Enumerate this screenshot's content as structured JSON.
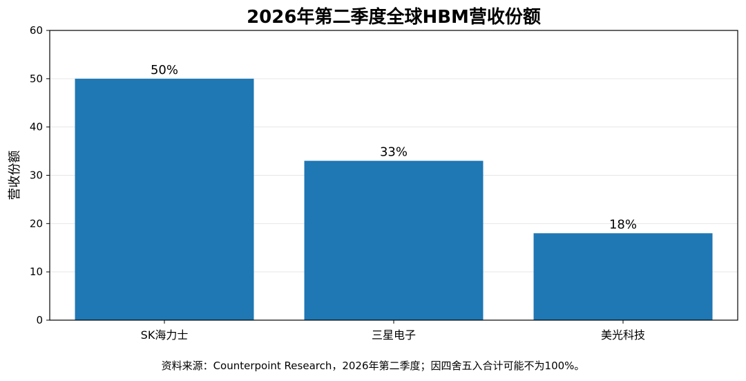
{
  "chart_data": {
    "type": "bar",
    "title": "2026年第二季度全球HBM营收份额",
    "xlabel": "",
    "ylabel": "营收份额",
    "categories": [
      "SK海力士",
      "三星电子",
      "美光科技"
    ],
    "values": [
      50,
      33,
      18
    ],
    "data_labels": [
      "50%",
      "33%",
      "18%"
    ],
    "ylim": [
      0,
      60
    ],
    "yticks": [
      0,
      10,
      20,
      30,
      40,
      50,
      60
    ],
    "grid": "horizontal",
    "bar_color": "#1f77b4",
    "source_note": "资料来源：Counterpoint Research，2026年第二季度；因四舍五入合计可能不为100%。"
  }
}
